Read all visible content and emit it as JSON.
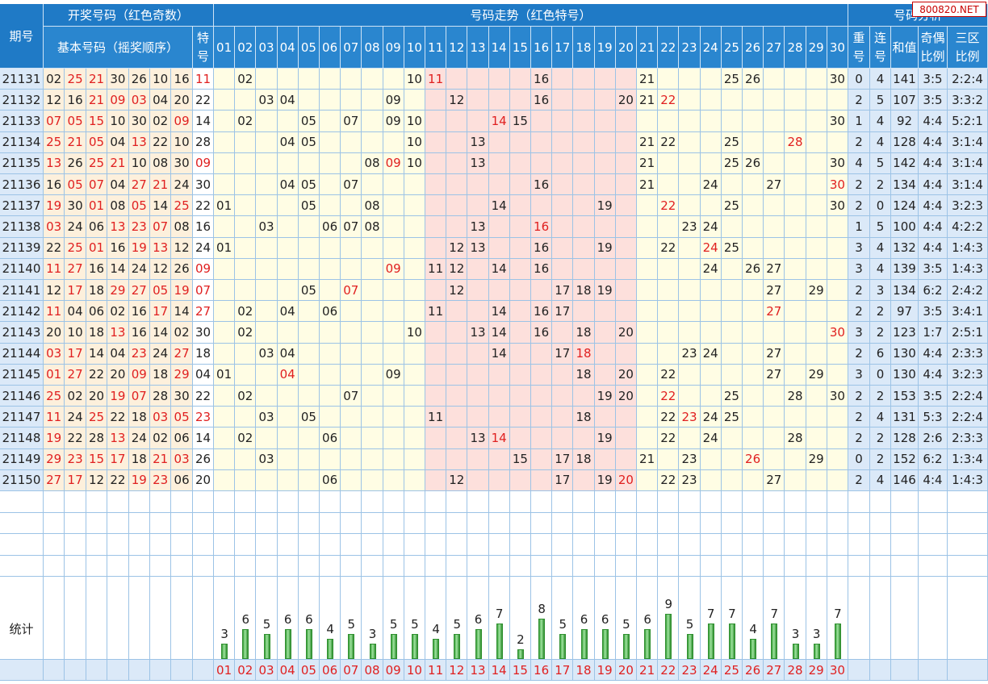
{
  "watermark": "800820.NET",
  "headers": {
    "issue": "期号",
    "draw_group": "开奖号码（红色奇数）",
    "basic_numbers": "基本号码（摇奖顺序）",
    "special_top": "特",
    "special_bottom": "号",
    "trend_group": "号码走势（红色特号）",
    "analysis_group": "号码分析",
    "repeat": [
      "重",
      "号"
    ],
    "consecutive": [
      "连",
      "号"
    ],
    "sum": "和值",
    "odd_even": [
      "奇偶",
      "比例"
    ],
    "zone": [
      "三区",
      "比例"
    ],
    "stats": "统计"
  },
  "trend_numbers": [
    "01",
    "02",
    "03",
    "04",
    "05",
    "06",
    "07",
    "08",
    "09",
    "10",
    "11",
    "12",
    "13",
    "14",
    "15",
    "16",
    "17",
    "18",
    "19",
    "20",
    "21",
    "22",
    "23",
    "24",
    "25",
    "26",
    "27",
    "28",
    "29",
    "30"
  ],
  "rows": [
    {
      "issue": "21131",
      "basic": [
        "02",
        "25",
        "21",
        "30",
        "26",
        "10",
        "16"
      ],
      "special": "11",
      "repeat": "0",
      "consecutive": "4",
      "sum": "141",
      "odd_even": "3:5",
      "zone": "2:2:4"
    },
    {
      "issue": "21132",
      "basic": [
        "12",
        "16",
        "21",
        "09",
        "03",
        "04",
        "20"
      ],
      "special": "22",
      "repeat": "2",
      "consecutive": "5",
      "sum": "107",
      "odd_even": "3:5",
      "zone": "3:3:2"
    },
    {
      "issue": "21133",
      "basic": [
        "07",
        "05",
        "15",
        "10",
        "30",
        "02",
        "09"
      ],
      "special": "14",
      "repeat": "1",
      "consecutive": "4",
      "sum": "92",
      "odd_even": "4:4",
      "zone": "5:2:1"
    },
    {
      "issue": "21134",
      "basic": [
        "25",
        "21",
        "05",
        "04",
        "13",
        "22",
        "10"
      ],
      "special": "28",
      "repeat": "2",
      "consecutive": "4",
      "sum": "128",
      "odd_even": "4:4",
      "zone": "3:1:4"
    },
    {
      "issue": "21135",
      "basic": [
        "13",
        "26",
        "25",
        "21",
        "10",
        "08",
        "30"
      ],
      "special": "09",
      "repeat": "4",
      "consecutive": "5",
      "sum": "142",
      "odd_even": "4:4",
      "zone": "3:1:4"
    },
    {
      "issue": "21136",
      "basic": [
        "16",
        "05",
        "07",
        "04",
        "27",
        "21",
        "24"
      ],
      "special": "30",
      "repeat": "2",
      "consecutive": "2",
      "sum": "134",
      "odd_even": "4:4",
      "zone": "3:1:4"
    },
    {
      "issue": "21137",
      "basic": [
        "19",
        "30",
        "01",
        "08",
        "05",
        "14",
        "25"
      ],
      "special": "22",
      "repeat": "2",
      "consecutive": "0",
      "sum": "124",
      "odd_even": "4:4",
      "zone": "3:2:3"
    },
    {
      "issue": "21138",
      "basic": [
        "03",
        "24",
        "06",
        "13",
        "23",
        "07",
        "08"
      ],
      "special": "16",
      "repeat": "1",
      "consecutive": "5",
      "sum": "100",
      "odd_even": "4:4",
      "zone": "4:2:2"
    },
    {
      "issue": "21139",
      "basic": [
        "22",
        "25",
        "01",
        "16",
        "19",
        "13",
        "12"
      ],
      "special": "24",
      "repeat": "3",
      "consecutive": "4",
      "sum": "132",
      "odd_even": "4:4",
      "zone": "1:4:3"
    },
    {
      "issue": "21140",
      "basic": [
        "11",
        "27",
        "16",
        "14",
        "24",
        "12",
        "26"
      ],
      "special": "09",
      "repeat": "3",
      "consecutive": "4",
      "sum": "139",
      "odd_even": "3:5",
      "zone": "1:4:3"
    },
    {
      "issue": "21141",
      "basic": [
        "12",
        "17",
        "18",
        "29",
        "27",
        "05",
        "19"
      ],
      "special": "07",
      "repeat": "2",
      "consecutive": "3",
      "sum": "134",
      "odd_even": "6:2",
      "zone": "2:4:2"
    },
    {
      "issue": "21142",
      "basic": [
        "11",
        "04",
        "06",
        "02",
        "16",
        "17",
        "14"
      ],
      "special": "27",
      "repeat": "2",
      "consecutive": "2",
      "sum": "97",
      "odd_even": "3:5",
      "zone": "3:4:1"
    },
    {
      "issue": "21143",
      "basic": [
        "20",
        "10",
        "18",
        "13",
        "16",
        "14",
        "02"
      ],
      "special": "30",
      "repeat": "3",
      "consecutive": "2",
      "sum": "123",
      "odd_even": "1:7",
      "zone": "2:5:1"
    },
    {
      "issue": "21144",
      "basic": [
        "03",
        "17",
        "14",
        "04",
        "23",
        "24",
        "27"
      ],
      "special": "18",
      "repeat": "2",
      "consecutive": "6",
      "sum": "130",
      "odd_even": "4:4",
      "zone": "2:3:3"
    },
    {
      "issue": "21145",
      "basic": [
        "01",
        "27",
        "22",
        "20",
        "09",
        "18",
        "29"
      ],
      "special": "04",
      "repeat": "3",
      "consecutive": "0",
      "sum": "130",
      "odd_even": "4:4",
      "zone": "3:2:3"
    },
    {
      "issue": "21146",
      "basic": [
        "25",
        "02",
        "20",
        "19",
        "07",
        "28",
        "30"
      ],
      "special": "22",
      "repeat": "2",
      "consecutive": "2",
      "sum": "153",
      "odd_even": "3:5",
      "zone": "2:2:4"
    },
    {
      "issue": "21147",
      "basic": [
        "11",
        "24",
        "25",
        "22",
        "18",
        "03",
        "05"
      ],
      "special": "23",
      "repeat": "2",
      "consecutive": "4",
      "sum": "131",
      "odd_even": "5:3",
      "zone": "2:2:4"
    },
    {
      "issue": "21148",
      "basic": [
        "19",
        "22",
        "28",
        "13",
        "24",
        "02",
        "06"
      ],
      "special": "14",
      "repeat": "2",
      "consecutive": "2",
      "sum": "128",
      "odd_even": "2:6",
      "zone": "2:3:3"
    },
    {
      "issue": "21149",
      "basic": [
        "29",
        "23",
        "15",
        "17",
        "18",
        "21",
        "03"
      ],
      "special": "26",
      "repeat": "0",
      "consecutive": "2",
      "sum": "152",
      "odd_even": "6:2",
      "zone": "1:3:4"
    },
    {
      "issue": "21150",
      "basic": [
        "27",
        "17",
        "12",
        "22",
        "19",
        "23",
        "06"
      ],
      "special": "20",
      "repeat": "2",
      "consecutive": "4",
      "sum": "146",
      "odd_even": "4:4",
      "zone": "1:4:3"
    }
  ],
  "colors": {
    "header": "#1f7ac6",
    "basic_bg": "#fdf0dc",
    "trend_bg": "#fffde4",
    "pink_zone": "#fde0dc",
    "analysis_bg": "#dbe9f8",
    "red": "#e02020",
    "bar_green": "#3aa03a"
  },
  "chart_data": {
    "type": "bar",
    "title": "统计",
    "categories": [
      "01",
      "02",
      "03",
      "04",
      "05",
      "06",
      "07",
      "08",
      "09",
      "10",
      "11",
      "12",
      "13",
      "14",
      "15",
      "16",
      "17",
      "18",
      "19",
      "20",
      "21",
      "22",
      "23",
      "24",
      "25",
      "26",
      "27",
      "28",
      "29",
      "30"
    ],
    "values": [
      3,
      6,
      5,
      6,
      6,
      4,
      5,
      3,
      5,
      5,
      4,
      5,
      6,
      7,
      2,
      8,
      5,
      6,
      6,
      5,
      6,
      9,
      5,
      7,
      7,
      4,
      7,
      3,
      3,
      7
    ]
  }
}
